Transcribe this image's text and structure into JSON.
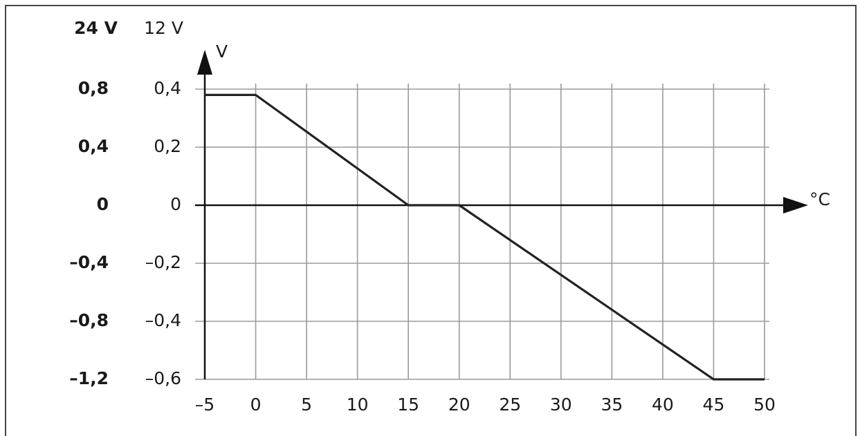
{
  "chart_data": {
    "type": "line",
    "y2_header": "24 V",
    "y_header": "12 V",
    "y_axis_label": "V",
    "x_axis_label": "°C",
    "x": [
      -5,
      0,
      15,
      20,
      45,
      50
    ],
    "values": [
      0.38,
      0.38,
      0,
      0,
      -0.6,
      -0.6
    ],
    "color": "#222222",
    "xlim": [
      -5,
      50
    ],
    "xticks": [
      {
        "value": -5,
        "label": "–5"
      },
      0,
      5,
      10,
      15,
      20,
      25,
      30,
      35,
      40,
      45,
      50
    ],
    "ylim": [
      -0.6,
      0.4
    ],
    "yticks": [
      {
        "value": 0.4,
        "label": "0,4"
      },
      {
        "value": 0.2,
        "label": "0,2"
      },
      0,
      {
        "value": -0.2,
        "label": "–0,2"
      },
      {
        "value": -0.4,
        "label": "–0,4"
      },
      {
        "value": -0.6,
        "label": "–0,6"
      }
    ],
    "y2lim": [
      -1.2,
      0.8
    ],
    "y2ticks": [
      {
        "value": 0.8,
        "label": "0,8"
      },
      {
        "value": 0.4,
        "label": "0,4"
      },
      0,
      {
        "value": -0.4,
        "label": "–0,4"
      },
      {
        "value": -0.8,
        "label": "–0,8"
      },
      {
        "value": -1.2,
        "label": "–1,2"
      }
    ],
    "grid": true
  }
}
